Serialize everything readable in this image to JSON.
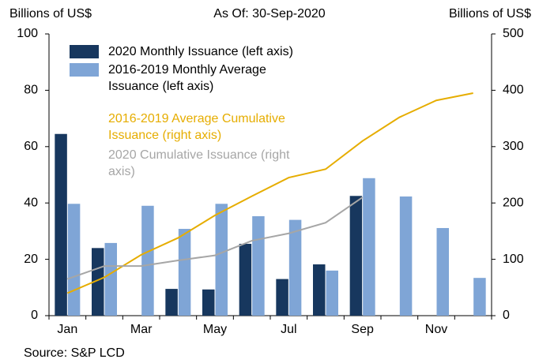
{
  "chart_data": {
    "type": "bar",
    "title": "As Of: 30-Sep-2020",
    "y_label": "Billions of US$",
    "y2_label": "Billions of US$",
    "source": "Source: S&P LCD",
    "categories": [
      "Jan",
      null,
      "Mar",
      null,
      "May",
      null,
      "Jul",
      null,
      "Sep",
      null,
      "Nov",
      null
    ],
    "ylim": [
      0,
      100
    ],
    "yticks": [
      0,
      20,
      40,
      60,
      80,
      100
    ],
    "y2lim": [
      0,
      500
    ],
    "y2ticks": [
      0,
      100,
      200,
      300,
      400,
      500
    ],
    "series": [
      {
        "name": "2020 Monthly Issuance (left axis)",
        "type": "bar",
        "color": "#17375e",
        "values": [
          64.5,
          24,
          0,
          9.5,
          9.3,
          25.5,
          13,
          18.2,
          42.5,
          null,
          null,
          null
        ]
      },
      {
        "name": "2016-2019 Monthly Average Issuance (left axis)",
        "type": "bar",
        "color": "#7fa5d6",
        "values": [
          39.7,
          25.8,
          39,
          30.8,
          39.7,
          35.3,
          34,
          16,
          48.8,
          42.3,
          31.1,
          13.4
        ]
      },
      {
        "name": "2016-2019 Average Cumulative Issuance (right axis)",
        "type": "line",
        "axis": "y2",
        "color": "#e6ad00",
        "values": [
          40,
          68,
          108,
          138,
          178,
          212,
          245,
          260,
          310,
          352,
          382,
          395
        ]
      },
      {
        "name": "2020 Cumulative Issuance (right axis)",
        "type": "line",
        "axis": "y2",
        "color": "#a6a6a6",
        "values": [
          65,
          88,
          88,
          98,
          107,
          133,
          146,
          165,
          210,
          null,
          null,
          null
        ]
      }
    ]
  }
}
